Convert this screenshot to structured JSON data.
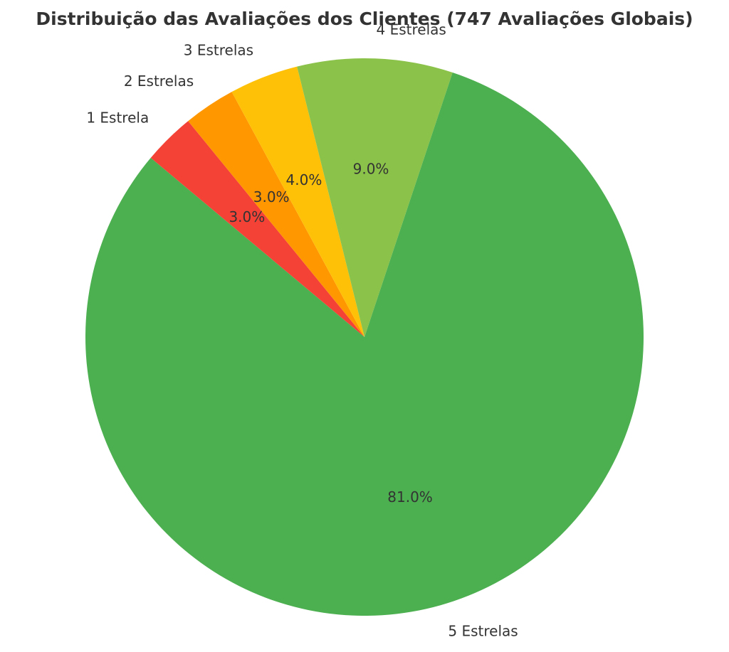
{
  "chart_data": {
    "type": "pie",
    "title": "Distribuição das Avaliações dos Clientes (747 Avaliações Globais)",
    "categories": [
      "1 Estrela",
      "2 Estrelas",
      "3 Estrelas",
      "4 Estrelas",
      "5 Estrelas"
    ],
    "values": [
      3,
      3,
      4,
      9,
      81
    ],
    "value_labels": [
      "3.0%",
      "3.0%",
      "4.0%",
      "9.0%",
      "81.0%"
    ],
    "colors": [
      "#f44336",
      "#ff9800",
      "#ffc107",
      "#8bc34a",
      "#4caf50"
    ],
    "start_angle": 140,
    "direction": "clockwise"
  }
}
